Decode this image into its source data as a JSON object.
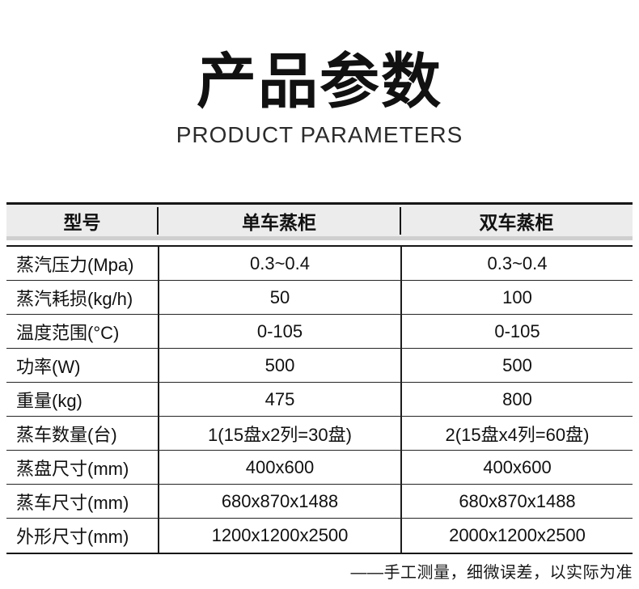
{
  "page": {
    "title_zh": "产品参数",
    "title_en": "PRODUCT PARAMETERS",
    "footnote": "——手工测量，细微误差，以实际为准"
  },
  "table": {
    "headers": [
      "型号",
      "单车蒸柜",
      "双车蒸柜"
    ],
    "rows": [
      {
        "label": "蒸汽压力(Mpa)",
        "single": "0.3~0.4",
        "double": "0.3~0.4"
      },
      {
        "label": "蒸汽耗损(kg/h)",
        "single": "50",
        "double": "100"
      },
      {
        "label": "温度范围(°C)",
        "single": "0-105",
        "double": "0-105"
      },
      {
        "label": "功率(W)",
        "single": "500",
        "double": "500"
      },
      {
        "label": "重量(kg)",
        "single": "475",
        "double": "800"
      },
      {
        "label": "蒸车数量(台)",
        "single": "1(15盘x2列=30盘)",
        "double": "2(15盘x4列=60盘)"
      },
      {
        "label": "蒸盘尺寸(mm)",
        "single": "400x600",
        "double": "400x600"
      },
      {
        "label": "蒸车尺寸(mm)",
        "single": "680x870x1488",
        "double": "680x870x1488"
      },
      {
        "label": "外形尺寸(mm)",
        "single": "1200x1200x2500",
        "double": "2000x1200x2500"
      }
    ]
  },
  "colors": {
    "background": "#ffffff",
    "text": "#111111",
    "line": "#161616",
    "header_bg": "#ececec",
    "header_band": "#cfcfcf"
  }
}
